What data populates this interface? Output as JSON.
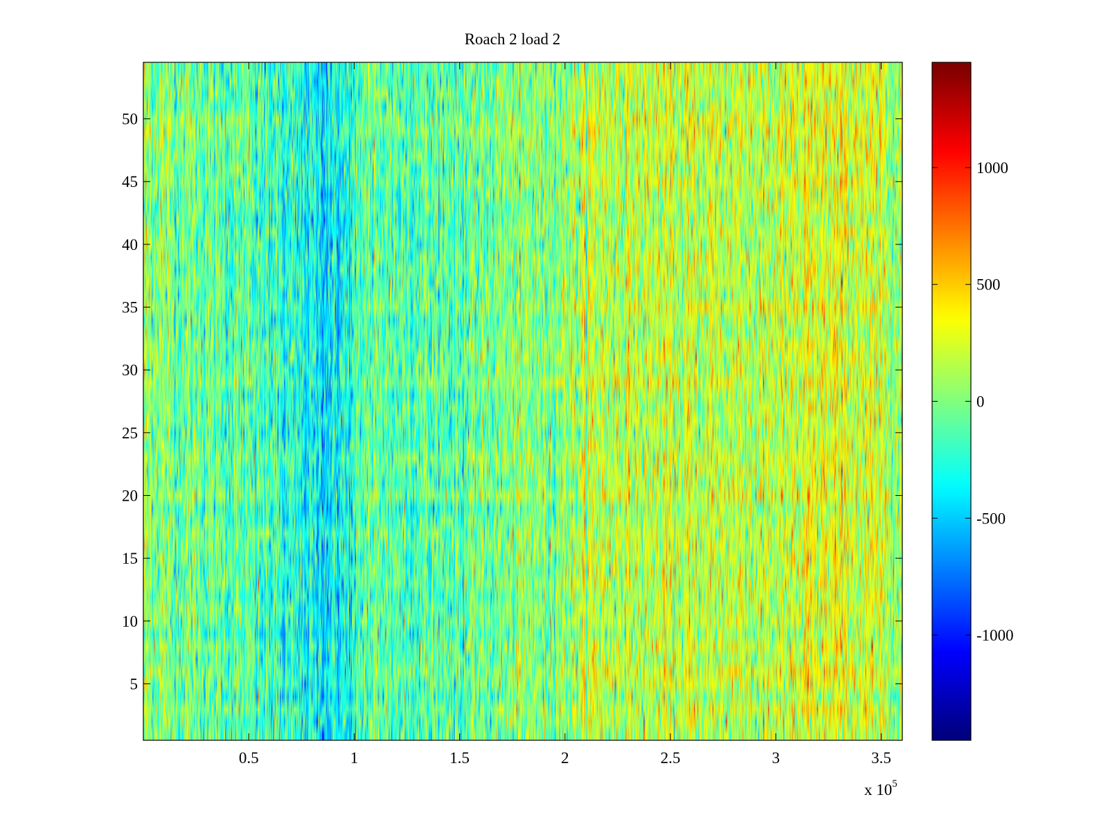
{
  "chart_data": {
    "type": "heatmap",
    "title": "Roach 2 load 2",
    "xlabel": "",
    "ylabel": "",
    "x_exponent_label": {
      "base": "x 10",
      "exponent": "5"
    },
    "xlim": [
      0,
      3.6
    ],
    "ylim": [
      0.5,
      54.5
    ],
    "x_ticks": [
      0.5,
      1,
      1.5,
      2,
      2.5,
      3,
      3.5
    ],
    "x_tick_labels": [
      "0.5",
      "1",
      "1.5",
      "2",
      "2.5",
      "3",
      "3.5"
    ],
    "y_ticks": [
      5,
      10,
      15,
      20,
      25,
      30,
      35,
      40,
      45,
      50
    ],
    "y_tick_labels": [
      "5",
      "10",
      "15",
      "20",
      "25",
      "30",
      "35",
      "40",
      "45",
      "50"
    ],
    "rows": 54,
    "colormap": "jet",
    "color_range": [
      -1450,
      1450
    ],
    "colorbar_ticks": [
      -1000,
      -500,
      0,
      500,
      1000
    ],
    "colorbar_tick_labels": [
      "-1000",
      "-500",
      "0",
      "500",
      "1000"
    ],
    "column_profile": {
      "x": [
        0,
        0.25,
        0.5,
        0.75,
        0.9,
        1.0,
        1.05,
        1.25,
        1.5,
        1.75,
        2.0,
        2.1,
        2.5,
        3.0,
        3.3,
        3.6
      ],
      "mean": [
        60,
        -50,
        -150,
        -330,
        -400,
        -300,
        -80,
        -120,
        -100,
        0,
        60,
        180,
        180,
        170,
        280,
        120
      ]
    },
    "grid": false,
    "colorbar_placement": "right"
  }
}
